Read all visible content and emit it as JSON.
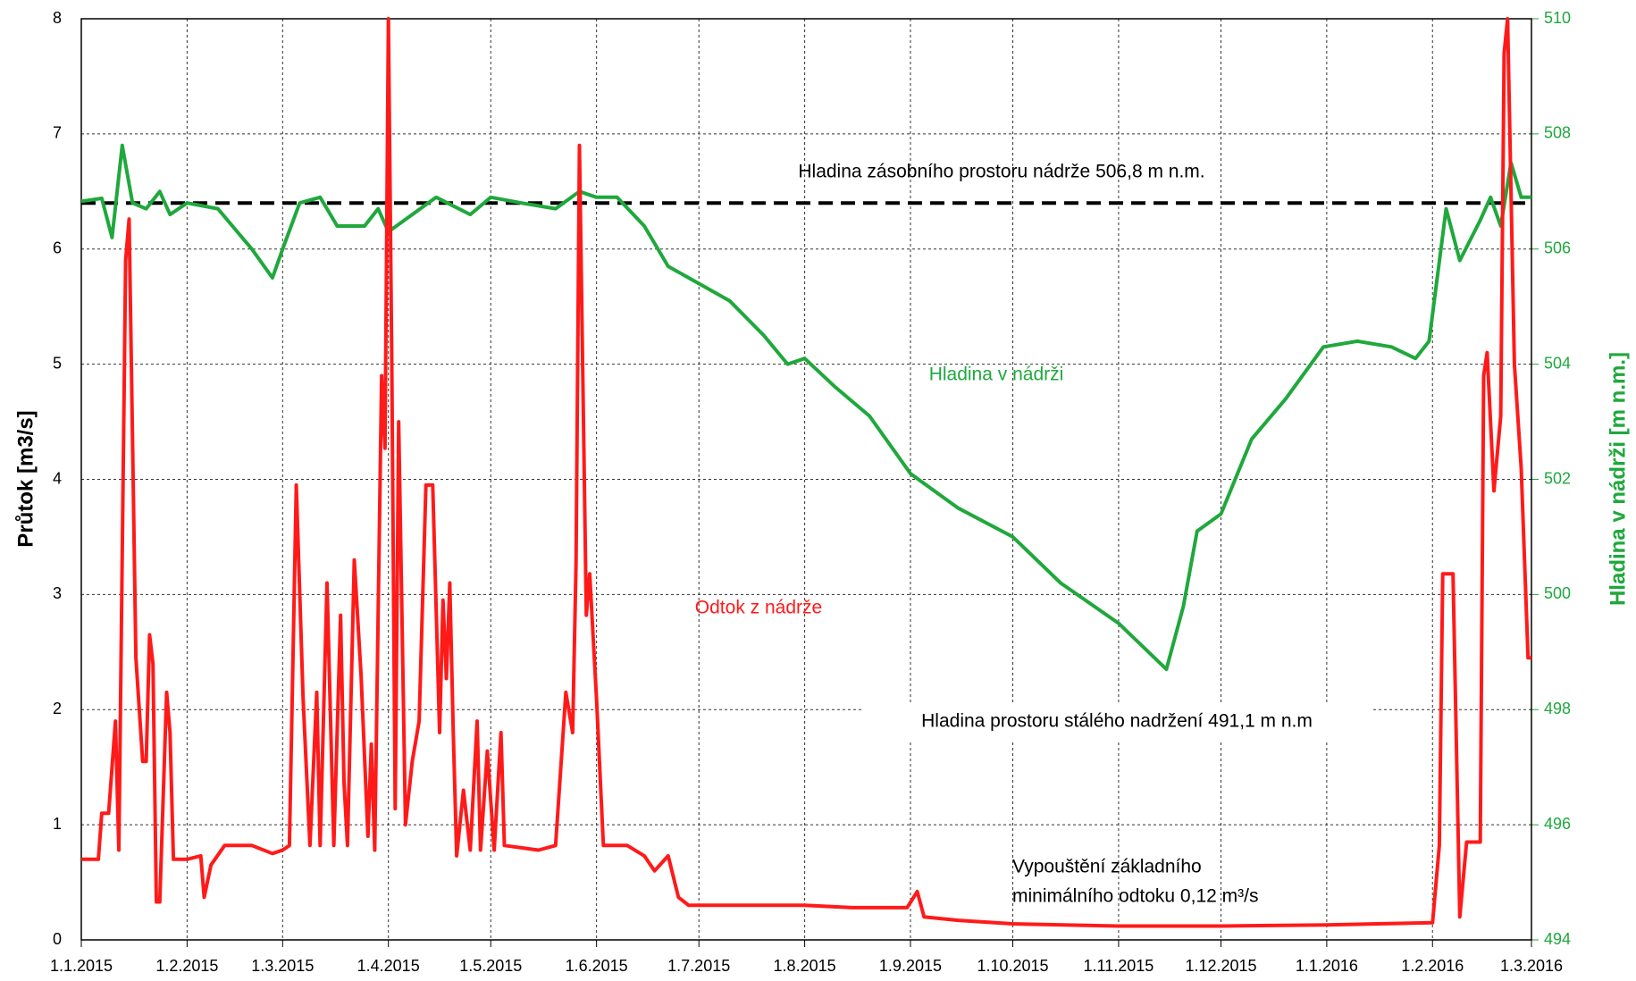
{
  "chart_data": {
    "type": "line",
    "xlabel": null,
    "ylabel": "Průtok [m3/s]",
    "y2label": "Hladina v nádrži [m n.m.]",
    "x_series_note": null,
    "xticks": [
      "1.1.2015",
      "1.2.2015",
      "1.3.2015",
      "1.4.2015",
      "1.5.2015",
      "1.6.2015",
      "1.7.2015",
      "1.8.2015",
      "1.9.2015",
      "1.10.2015",
      "1.11.2015",
      "1.12.2015",
      "1.1.2016",
      "1.2.2016",
      "1.3.2016"
    ],
    "ylim": [
      0,
      8
    ],
    "yticks": [
      0,
      1,
      2,
      3,
      4,
      5,
      6,
      7,
      8
    ],
    "y2lim": [
      494,
      510
    ],
    "y2ticks": [
      494,
      496,
      498,
      500,
      502,
      504,
      506,
      508,
      510
    ],
    "grid": true,
    "series": [
      {
        "name": "Hladina v nádrži",
        "color": "#1fa83c",
        "axis": "y2",
        "x": [
          "1.1.2015",
          "7.1.2015",
          "10.1.2015",
          "13.1.2015",
          "16.1.2015",
          "20.1.2015",
          "24.1.2015",
          "27.1.2015",
          "1.2.2015",
          "10.2.2015",
          "20.2.2015",
          "26.2.2015",
          "1.3.2015",
          "6.3.2015",
          "12.3.2015",
          "17.3.2015",
          "25.3.2015",
          "29.3.2015",
          "1.4.2015",
          "8.4.2015",
          "15.4.2015",
          "25.4.2015",
          "1.5.2015",
          "10.5.2015",
          "20.5.2015",
          "27.5.2015",
          "1.6.2015",
          "7.6.2015",
          "15.6.2015",
          "22.6.2015",
          "1.7.2015",
          "10.7.2015",
          "20.7.2015",
          "27.7.2015",
          "1.8.2015",
          "10.8.2015",
          "20.8.2015",
          "1.9.2015",
          "15.9.2015",
          "1.10.2015",
          "15.10.2015",
          "1.11.2015",
          "15.11.2015",
          "20.11.2015",
          "24.11.2015",
          "1.12.2015",
          "10.12.2015",
          "20.12.2015",
          "31.12.2015",
          "10.1.2016",
          "20.1.2016",
          "27.1.2016",
          "31.1.2016",
          "5.2.2016",
          "9.2.2016",
          "15.2.2016",
          "18.2.2016",
          "21.2.2016",
          "24.2.2016",
          "27.2.2016",
          "1.3.2016"
        ],
        "values": [
          506.83,
          506.88,
          506.2,
          507.8,
          506.8,
          506.7,
          507.0,
          506.6,
          506.8,
          506.7,
          506.0,
          505.5,
          506.0,
          506.8,
          506.9,
          506.4,
          506.4,
          506.7,
          506.3,
          506.6,
          506.9,
          506.6,
          506.9,
          506.8,
          506.7,
          507.0,
          506.9,
          506.9,
          506.4,
          505.7,
          505.4,
          505.1,
          504.5,
          504.0,
          504.1,
          503.6,
          503.1,
          502.1,
          501.5,
          501.0,
          500.2,
          499.5,
          498.7,
          499.8,
          501.1,
          501.4,
          502.7,
          503.4,
          504.3,
          504.4,
          504.3,
          504.1,
          504.4,
          506.7,
          505.8,
          506.5,
          506.9,
          506.4,
          507.5,
          506.9,
          506.9
        ]
      },
      {
        "name": "Odtok z nádrže",
        "color": "#ff1a1a",
        "x": [
          "1.1.2015",
          "6.1.2015",
          "7.1.2015",
          "9.1.2015",
          "11.1.2015",
          "12.1.2015",
          "14.1.2015",
          "15.1.2015",
          "17.1.2015",
          "19.1.2015",
          "20.1.2015",
          "21.1.2015",
          "22.1.2015",
          "23.1.2015",
          "24.1.2015",
          "26.1.2015",
          "27.1.2015",
          "28.1.2015",
          "1.2.2015",
          "5.2.2015",
          "6.2.2015",
          "8.2.2015",
          "12.2.2015",
          "20.2.2015",
          "26.2.2015",
          "1.3.2015",
          "3.3.2015",
          "5.3.2015",
          "7.3.2015",
          "9.3.2015",
          "11.3.2015",
          "12.3.2015",
          "14.3.2015",
          "16.3.2015",
          "18.3.2015",
          "19.3.2015",
          "20.3.2015",
          "22.3.2015",
          "24.3.2015",
          "26.3.2015",
          "27.3.2015",
          "28.3.2015",
          "30.3.2015",
          "31.3.2015",
          "1.4.2015",
          "2.4.2015",
          "3.4.2015",
          "4.4.2015",
          "6.4.2015",
          "8.4.2015",
          "10.4.2015",
          "12.4.2015",
          "14.4.2015",
          "16.4.2015",
          "17.4.2015",
          "18.4.2015",
          "19.4.2015",
          "20.4.2015",
          "21.4.2015",
          "23.4.2015",
          "25.4.2015",
          "27.4.2015",
          "28.4.2015",
          "30.4.2015",
          "2.5.2015",
          "4.5.2015",
          "5.5.2015",
          "15.5.2015",
          "20.5.2015",
          "23.5.2015",
          "25.5.2015",
          "26.5.2015",
          "27.5.2015",
          "29.5.2015",
          "30.5.2015",
          "1.6.2015",
          "3.6.2015",
          "10.6.2015",
          "15.6.2015",
          "18.6.2015",
          "22.6.2015",
          "25.6.2015",
          "28.6.2015",
          "15.7.2015",
          "1.8.2015",
          "15.8.2015",
          "31.8.2015",
          "3.9.2015",
          "5.9.2015",
          "15.9.2015",
          "1.10.2015",
          "1.11.2015",
          "1.12.2015",
          "1.1.2016",
          "1.2.2016",
          "3.2.2016",
          "4.2.2016",
          "7.2.2016",
          "9.2.2016",
          "11.2.2016",
          "15.2.2016",
          "16.2.2016",
          "17.2.2016",
          "19.2.2016",
          "21.2.2016",
          "22.2.2016",
          "23.2.2016",
          "25.2.2016",
          "27.2.2016",
          "29.2.2016",
          "1.3.2016"
        ],
        "values": [
          0.7,
          0.7,
          1.1,
          1.1,
          1.9,
          0.78,
          5.9,
          6.26,
          2.45,
          1.55,
          1.55,
          2.65,
          2.4,
          0.33,
          0.33,
          2.15,
          1.8,
          0.7,
          0.7,
          0.73,
          0.37,
          0.65,
          0.82,
          0.82,
          0.75,
          0.78,
          0.82,
          3.95,
          2.1,
          0.82,
          2.15,
          0.82,
          3.1,
          0.82,
          2.82,
          1.37,
          0.82,
          3.3,
          2.3,
          0.9,
          1.7,
          0.78,
          4.9,
          4.27,
          8,
          5.0,
          1.14,
          4.5,
          1.0,
          1.55,
          1.9,
          3.95,
          3.95,
          1.8,
          2.95,
          2.27,
          3.1,
          1.8,
          0.73,
          1.3,
          0.78,
          1.9,
          0.78,
          1.64,
          0.78,
          1.8,
          0.82,
          0.78,
          0.82,
          2.15,
          1.8,
          3.27,
          6.9,
          2.82,
          3.18,
          2.1,
          0.82,
          0.82,
          0.73,
          0.6,
          0.73,
          0.37,
          0.3,
          0.3,
          0.3,
          0.28,
          0.28,
          0.42,
          0.2,
          0.17,
          0.14,
          0.12,
          0.12,
          0.13,
          0.15,
          0.82,
          3.18,
          3.18,
          0.2,
          0.85,
          0.85,
          4.9,
          5.1,
          3.9,
          4.55,
          7.7,
          8,
          5.0,
          4.1,
          2.45,
          2.45
        ]
      }
    ],
    "reference_line": {
      "value": 506.8,
      "axis": "y2",
      "color": "#000000"
    },
    "annotations": [
      {
        "text": "Hladina zásobního prostoru nádrže 506,8 m n.m."
      },
      {
        "text": "Hladina prostoru stálého nadržení 491,1 m n.m"
      },
      {
        "lines": [
          "Vypouštění základního",
          "minimálního odtoku 0,12 m³/s"
        ]
      }
    ]
  }
}
